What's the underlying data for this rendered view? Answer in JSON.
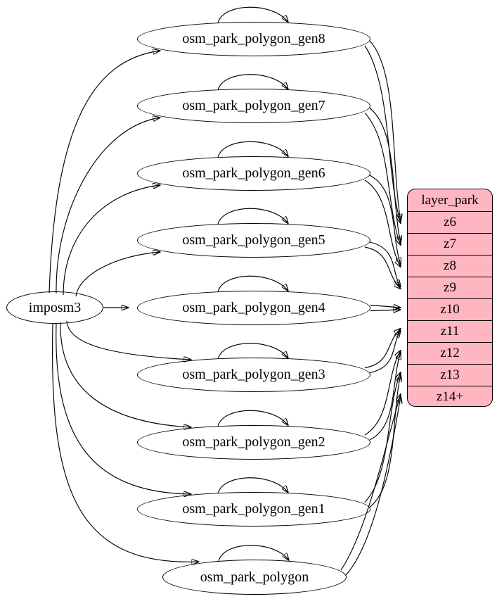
{
  "diagram": {
    "source_node": {
      "id": "imposm3",
      "label": "imposm3"
    },
    "table_nodes": [
      {
        "id": "osm_park_polygon_gen8",
        "label": "osm_park_polygon_gen8"
      },
      {
        "id": "osm_park_polygon_gen7",
        "label": "osm_park_polygon_gen7"
      },
      {
        "id": "osm_park_polygon_gen6",
        "label": "osm_park_polygon_gen6"
      },
      {
        "id": "osm_park_polygon_gen5",
        "label": "osm_park_polygon_gen5"
      },
      {
        "id": "osm_park_polygon_gen4",
        "label": "osm_park_polygon_gen4"
      },
      {
        "id": "osm_park_polygon_gen3",
        "label": "osm_park_polygon_gen3"
      },
      {
        "id": "osm_park_polygon_gen2",
        "label": "osm_park_polygon_gen2"
      },
      {
        "id": "osm_park_polygon_gen1",
        "label": "osm_park_polygon_gen1"
      },
      {
        "id": "osm_park_polygon",
        "label": "osm_park_polygon"
      }
    ],
    "layer_node": {
      "title": "layer_park",
      "rows": [
        "z6",
        "z7",
        "z8",
        "z9",
        "z10",
        "z11",
        "z12",
        "z13",
        "z14+"
      ]
    },
    "colors": {
      "layer_fill": "#ffb6c1",
      "node_fill": "#ffffff",
      "stroke": "#000000",
      "background": "#ffffff"
    },
    "edges": {
      "source_to_tables": [
        "osm_park_polygon_gen8",
        "osm_park_polygon_gen7",
        "osm_park_polygon_gen6",
        "osm_park_polygon_gen5",
        "osm_park_polygon_gen4",
        "osm_park_polygon_gen3",
        "osm_park_polygon_gen2",
        "osm_park_polygon_gen1",
        "osm_park_polygon"
      ],
      "self_loops": [
        "osm_park_polygon_gen8",
        "osm_park_polygon_gen7",
        "osm_park_polygon_gen6",
        "osm_park_polygon_gen5",
        "osm_park_polygon_gen4",
        "osm_park_polygon_gen3",
        "osm_park_polygon_gen2",
        "osm_park_polygon_gen1",
        "osm_park_polygon"
      ],
      "table_to_zoom": [
        {
          "from": "osm_park_polygon_gen8",
          "to": "z6",
          "count": 2
        },
        {
          "from": "osm_park_polygon_gen7",
          "to": "z7",
          "count": 2
        },
        {
          "from": "osm_park_polygon_gen6",
          "to": "z8",
          "count": 2
        },
        {
          "from": "osm_park_polygon_gen5",
          "to": "z9",
          "count": 2
        },
        {
          "from": "osm_park_polygon_gen4",
          "to": "z10",
          "count": 2
        },
        {
          "from": "osm_park_polygon_gen3",
          "to": "z11",
          "count": 2
        },
        {
          "from": "osm_park_polygon_gen2",
          "to": "z12",
          "count": 2
        },
        {
          "from": "osm_park_polygon_gen1",
          "to": "z13",
          "count": 2
        },
        {
          "from": "osm_park_polygon",
          "to": "z14+",
          "count": 2
        }
      ]
    }
  }
}
